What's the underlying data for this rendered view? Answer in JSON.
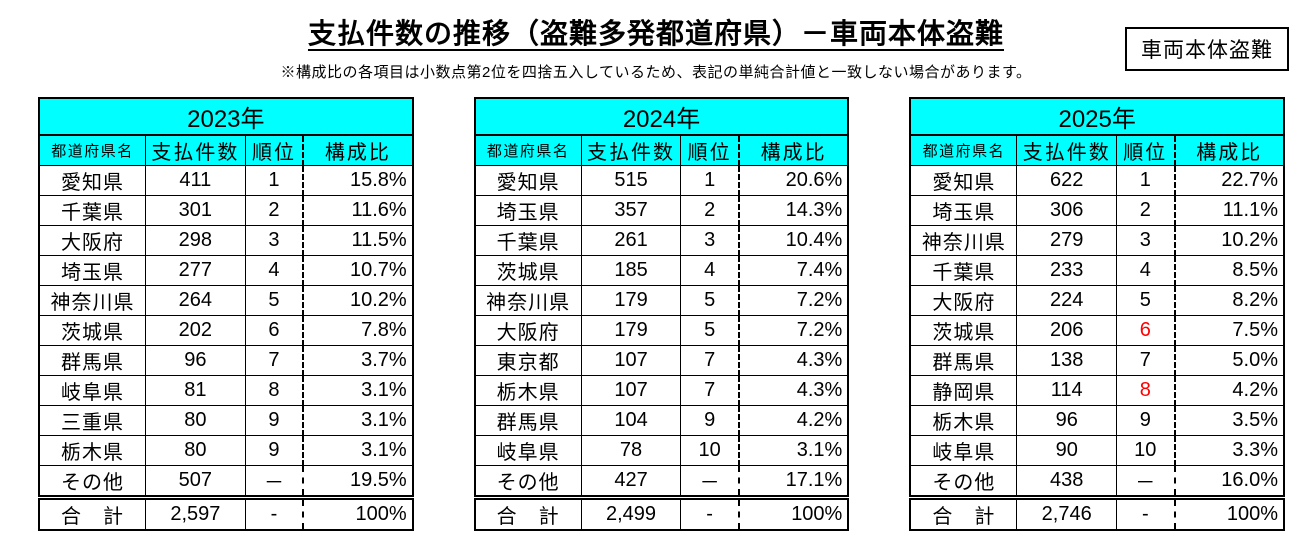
{
  "header": {
    "title": "支払件数の推移（盗難多発都道府県）－車両本体盗難",
    "tag": "車両本体盗難",
    "note": "※構成比の各項目は小数点第2位を四捨五入しているため、表記の単純合計値と一致しない場合があります。"
  },
  "columns": [
    "都道府県名",
    "支払件数",
    "順位",
    "構成比"
  ],
  "colors": {
    "header_bg": "#00FFFF",
    "rank_highlight": "#FF0000",
    "border": "#000000"
  },
  "tables": [
    {
      "year": "2023年",
      "rows": [
        {
          "pref": "愛知県",
          "count": "411",
          "rank": "1",
          "share": "15.8%"
        },
        {
          "pref": "千葉県",
          "count": "301",
          "rank": "2",
          "share": "11.6%"
        },
        {
          "pref": "大阪府",
          "count": "298",
          "rank": "3",
          "share": "11.5%"
        },
        {
          "pref": "埼玉県",
          "count": "277",
          "rank": "4",
          "share": "10.7%"
        },
        {
          "pref": "神奈川県",
          "count": "264",
          "rank": "5",
          "share": "10.2%"
        },
        {
          "pref": "茨城県",
          "count": "202",
          "rank": "6",
          "share": "7.8%"
        },
        {
          "pref": "群馬県",
          "count": "96",
          "rank": "7",
          "share": "3.7%"
        },
        {
          "pref": "岐阜県",
          "count": "81",
          "rank": "8",
          "share": "3.1%"
        },
        {
          "pref": "三重県",
          "count": "80",
          "rank": "9",
          "share": "3.1%"
        },
        {
          "pref": "栃木県",
          "count": "80",
          "rank": "9",
          "share": "3.1%"
        },
        {
          "pref": "その他",
          "count": "507",
          "rank": "－",
          "share": "19.5%"
        },
        {
          "pref": "合　計",
          "count": "2,597",
          "rank": "-",
          "share": "100%",
          "total": true
        }
      ]
    },
    {
      "year": "2024年",
      "rows": [
        {
          "pref": "愛知県",
          "count": "515",
          "rank": "1",
          "share": "20.6%"
        },
        {
          "pref": "埼玉県",
          "count": "357",
          "rank": "2",
          "share": "14.3%"
        },
        {
          "pref": "千葉県",
          "count": "261",
          "rank": "3",
          "share": "10.4%"
        },
        {
          "pref": "茨城県",
          "count": "185",
          "rank": "4",
          "share": "7.4%"
        },
        {
          "pref": "神奈川県",
          "count": "179",
          "rank": "5",
          "share": "7.2%"
        },
        {
          "pref": "大阪府",
          "count": "179",
          "rank": "5",
          "share": "7.2%"
        },
        {
          "pref": "東京都",
          "count": "107",
          "rank": "7",
          "share": "4.3%"
        },
        {
          "pref": "栃木県",
          "count": "107",
          "rank": "7",
          "share": "4.3%"
        },
        {
          "pref": "群馬県",
          "count": "104",
          "rank": "9",
          "share": "4.2%"
        },
        {
          "pref": "岐阜県",
          "count": "78",
          "rank": "10",
          "share": "3.1%"
        },
        {
          "pref": "その他",
          "count": "427",
          "rank": "－",
          "share": "17.1%"
        },
        {
          "pref": "合　計",
          "count": "2,499",
          "rank": "-",
          "share": "100%",
          "total": true
        }
      ]
    },
    {
      "year": "2025年",
      "rows": [
        {
          "pref": "愛知県",
          "count": "622",
          "rank": "1",
          "share": "22.7%"
        },
        {
          "pref": "埼玉県",
          "count": "306",
          "rank": "2",
          "share": "11.1%"
        },
        {
          "pref": "神奈川県",
          "count": "279",
          "rank": "3",
          "share": "10.2%"
        },
        {
          "pref": "千葉県",
          "count": "233",
          "rank": "4",
          "share": "8.5%"
        },
        {
          "pref": "大阪府",
          "count": "224",
          "rank": "5",
          "share": "8.2%"
        },
        {
          "pref": "茨城県",
          "count": "206",
          "rank": "6",
          "share": "7.5%",
          "rank_red": true
        },
        {
          "pref": "群馬県",
          "count": "138",
          "rank": "7",
          "share": "5.0%"
        },
        {
          "pref": "静岡県",
          "count": "114",
          "rank": "8",
          "share": "4.2%",
          "rank_red": true
        },
        {
          "pref": "栃木県",
          "count": "96",
          "rank": "9",
          "share": "3.5%"
        },
        {
          "pref": "岐阜県",
          "count": "90",
          "rank": "10",
          "share": "3.3%"
        },
        {
          "pref": "その他",
          "count": "438",
          "rank": "－",
          "share": "16.0%"
        },
        {
          "pref": "合　計",
          "count": "2,746",
          "rank": "-",
          "share": "100%",
          "total": true
        }
      ]
    }
  ]
}
